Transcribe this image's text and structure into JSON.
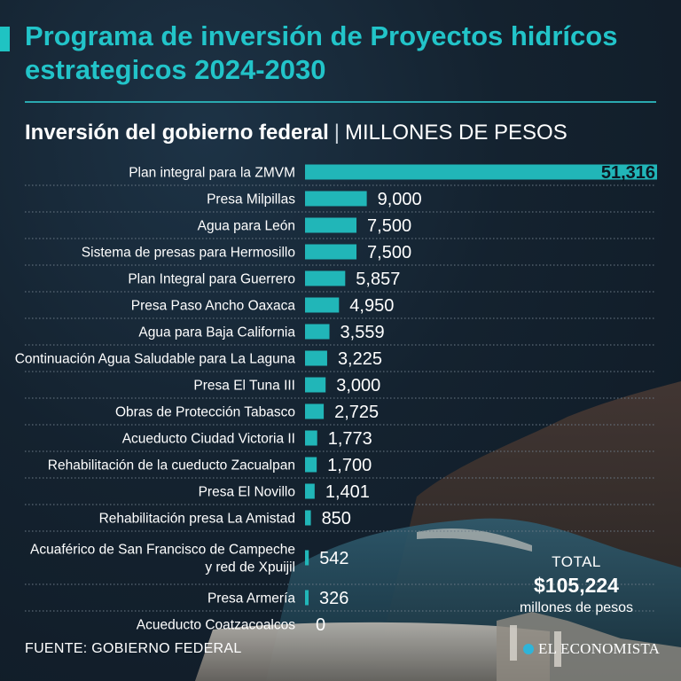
{
  "header": {
    "title": "Programa de inversión de Proyectos hidrícos estrategicos 2024-2030",
    "subtitle_main": "Inversión del gobierno federal",
    "subtitle_separator": "|",
    "subtitle_unit": "MILLONES DE PESOS"
  },
  "chart_data": {
    "type": "bar",
    "orientation": "horizontal",
    "title": "Inversión del gobierno federal",
    "unit": "MILLONES DE PESOS",
    "categories": [
      "Plan integral para la ZMVM",
      "Presa Milpillas",
      "Agua para León",
      "Sistema de presas para Hermosillo",
      "Plan Integral para Guerrero",
      "Presa Paso Ancho Oaxaca",
      "Agua para Baja California",
      "Continuación Agua Saludable para La Laguna",
      "Presa El Tuna III",
      "Obras de Protección Tabasco",
      "Acueducto Ciudad Victoria II",
      "Rehabilitación de la cueducto Zacualpan",
      "Presa El Novillo",
      "Rehabilitación presa La Amistad",
      [
        "Acuaférico de San Francisco de Campeche",
        "y red de Xpuijil"
      ],
      "Presa Armería",
      "Acueducto Coatzacoalcos"
    ],
    "values": [
      51316,
      9000,
      7500,
      7500,
      5857,
      4950,
      3559,
      3225,
      3000,
      2725,
      1773,
      1700,
      1401,
      850,
      542,
      326,
      0
    ],
    "value_labels": [
      "51,316",
      "9,000",
      "7,500",
      "7,500",
      "5,857",
      "4,950",
      "3,559",
      "3,225",
      "3,000",
      "2,725",
      "1,773",
      "1,700",
      "1,401",
      "850",
      "542",
      "326",
      "0"
    ],
    "xlim": [
      0,
      51316
    ],
    "legend": "none",
    "grid": false
  },
  "total": {
    "label": "TOTAL",
    "value": "$105,224",
    "unit": "millones de pesos"
  },
  "footer": {
    "source": "FUENTE: GOBIERNO FEDERAL",
    "brand": "EL ECONOMISTA"
  },
  "colors": {
    "bar": "#21b6b8",
    "title": "#22c4c9",
    "background": "#14222f",
    "separator": "#6c7a87"
  }
}
